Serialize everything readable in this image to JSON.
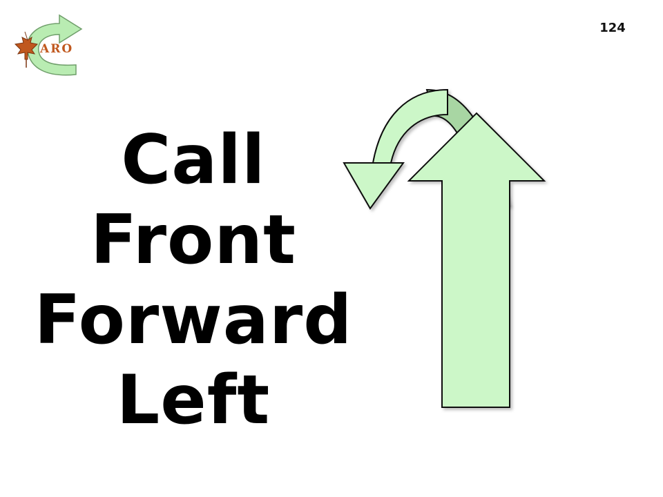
{
  "logo": {
    "text": "ARO",
    "icon": "maple-leaf-icon",
    "arc_icon": "curved-arrow-icon",
    "color_leaf": "#c0581e",
    "color_arrow": "#b9ecb2"
  },
  "slide": {
    "page_number": "124",
    "lines": [
      "Call",
      "Front",
      "Forward",
      "Left"
    ]
  },
  "graphics": {
    "up_arrow_icon": "up-arrow-icon",
    "turn_arrow_icon": "u-turn-left-arrow-icon",
    "fill_light": "#ccf7c8",
    "fill_dark": "#a8d6a3",
    "stroke": "#111111"
  }
}
